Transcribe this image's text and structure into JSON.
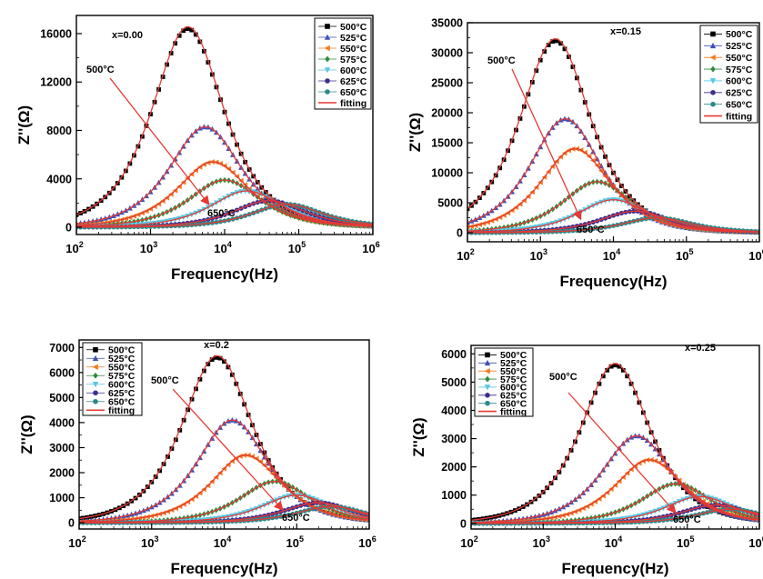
{
  "figure": {
    "panel_count": 4
  },
  "colors": {
    "500": "#000000",
    "525": "#3F51B5",
    "550": "#F57C20",
    "575": "#2E8B3E",
    "600": "#56C7E3",
    "625": "#3B2E8C",
    "650": "#2A8A8A",
    "fitting": "#E53935"
  },
  "legend_labels": [
    "500°C",
    "525°C",
    "550°C",
    "575°C",
    "600°C",
    "625°C",
    "650°C",
    "fitting"
  ],
  "chart_data": [
    {
      "type": "scatter",
      "title": "x=0.00",
      "xlabel": "Frequency(Hz)",
      "ylabel": "Z''(Ω)",
      "xscale": "log",
      "xlim": [
        100,
        1000000
      ],
      "ylim": [
        -600,
        17500
      ],
      "yticks": [
        0,
        4000,
        8000,
        12000,
        16000
      ],
      "legend_position": "top-right",
      "arrow": {
        "start_label": "500°C",
        "end_label": "650°C"
      },
      "series": [
        {
          "name": "500°C",
          "marker": "square",
          "peak": 16400,
          "fpeak": 3200
        },
        {
          "name": "525°C",
          "marker": "triangle",
          "peak": 8300,
          "fpeak": 5500
        },
        {
          "name": "550°C",
          "marker": "tri-left",
          "peak": 5400,
          "fpeak": 7000
        },
        {
          "name": "575°C",
          "marker": "diamond",
          "peak": 3900,
          "fpeak": 10000
        },
        {
          "name": "600°C",
          "marker": "tri-down",
          "peak": 3000,
          "fpeak": 20000
        },
        {
          "name": "625°C",
          "marker": "circle",
          "peak": 2200,
          "fpeak": 40000
        },
        {
          "name": "650°C",
          "marker": "circle",
          "peak": 1900,
          "fpeak": 70000
        },
        {
          "name": "fitting",
          "marker": "line"
        }
      ]
    },
    {
      "type": "scatter",
      "title": "x=0.15",
      "xlabel": "Frequency(Hz)",
      "ylabel": "Z''(Ω)",
      "xscale": "log",
      "xlim": [
        100,
        1000000
      ],
      "ylim": [
        -1500,
        35000
      ],
      "yticks": [
        0,
        5000,
        10000,
        15000,
        20000,
        25000,
        30000,
        35000
      ],
      "legend_position": "top-right",
      "arrow": {
        "start_label": "500°C",
        "end_label": "650°C"
      },
      "series": [
        {
          "name": "500°C",
          "marker": "square",
          "peak": 32000,
          "fpeak": 1600
        },
        {
          "name": "525°C",
          "marker": "triangle",
          "peak": 19000,
          "fpeak": 2200
        },
        {
          "name": "550°C",
          "marker": "tri-left",
          "peak": 14000,
          "fpeak": 3000
        },
        {
          "name": "575°C",
          "marker": "diamond",
          "peak": 8500,
          "fpeak": 6000
        },
        {
          "name": "600°C",
          "marker": "tri-down",
          "peak": 5500,
          "fpeak": 10000
        },
        {
          "name": "625°C",
          "marker": "circle",
          "peak": 3600,
          "fpeak": 20000
        },
        {
          "name": "650°C",
          "marker": "circle",
          "peak": 2500,
          "fpeak": 40000
        },
        {
          "name": "fitting",
          "marker": "line"
        }
      ]
    },
    {
      "type": "scatter",
      "title": "x=0.2",
      "xlabel": "Frequency(Hz)",
      "ylabel": "Z''(Ω)",
      "xscale": "log",
      "xlim": [
        100,
        1000000
      ],
      "ylim": [
        -250,
        7300
      ],
      "yticks": [
        0,
        1000,
        2000,
        3000,
        4000,
        5000,
        6000,
        7000
      ],
      "legend_position": "top-left",
      "arrow": {
        "start_label": "500°C",
        "end_label": "650°C"
      },
      "series": [
        {
          "name": "500°C",
          "marker": "square",
          "peak": 6600,
          "fpeak": 8000
        },
        {
          "name": "525°C",
          "marker": "triangle",
          "peak": 4100,
          "fpeak": 13000
        },
        {
          "name": "550°C",
          "marker": "tri-left",
          "peak": 2700,
          "fpeak": 20000
        },
        {
          "name": "575°C",
          "marker": "diamond",
          "peak": 1650,
          "fpeak": 50000
        },
        {
          "name": "600°C",
          "marker": "tri-down",
          "peak": 1100,
          "fpeak": 100000
        },
        {
          "name": "625°C",
          "marker": "circle",
          "peak": 800,
          "fpeak": 200000
        },
        {
          "name": "650°C",
          "marker": "circle",
          "peak": 650,
          "fpeak": 300000
        },
        {
          "name": "fitting",
          "marker": "line"
        }
      ]
    },
    {
      "type": "scatter",
      "title": "x=0.25",
      "xlabel": "Frequency(Hz)",
      "ylabel": "Z''(Ω)",
      "xscale": "log",
      "xlim": [
        100,
        1000000
      ],
      "ylim": [
        -200,
        6300
      ],
      "yticks": [
        0,
        1000,
        2000,
        3000,
        4000,
        5000,
        6000
      ],
      "legend_position": "top-left",
      "arrow": {
        "start_label": "500°C",
        "end_label": "650°C"
      },
      "series": [
        {
          "name": "500°C",
          "marker": "square",
          "peak": 5600,
          "fpeak": 10000
        },
        {
          "name": "525°C",
          "marker": "triangle",
          "peak": 3100,
          "fpeak": 20000
        },
        {
          "name": "550°C",
          "marker": "tri-left",
          "peak": 2250,
          "fpeak": 30000
        },
        {
          "name": "575°C",
          "marker": "diamond",
          "peak": 1400,
          "fpeak": 70000
        },
        {
          "name": "600°C",
          "marker": "tri-down",
          "peak": 950,
          "fpeak": 150000
        },
        {
          "name": "625°C",
          "marker": "circle",
          "peak": 650,
          "fpeak": 250000
        },
        {
          "name": "650°C",
          "marker": "circle",
          "peak": 500,
          "fpeak": 400000
        },
        {
          "name": "fitting",
          "marker": "line"
        }
      ]
    }
  ]
}
